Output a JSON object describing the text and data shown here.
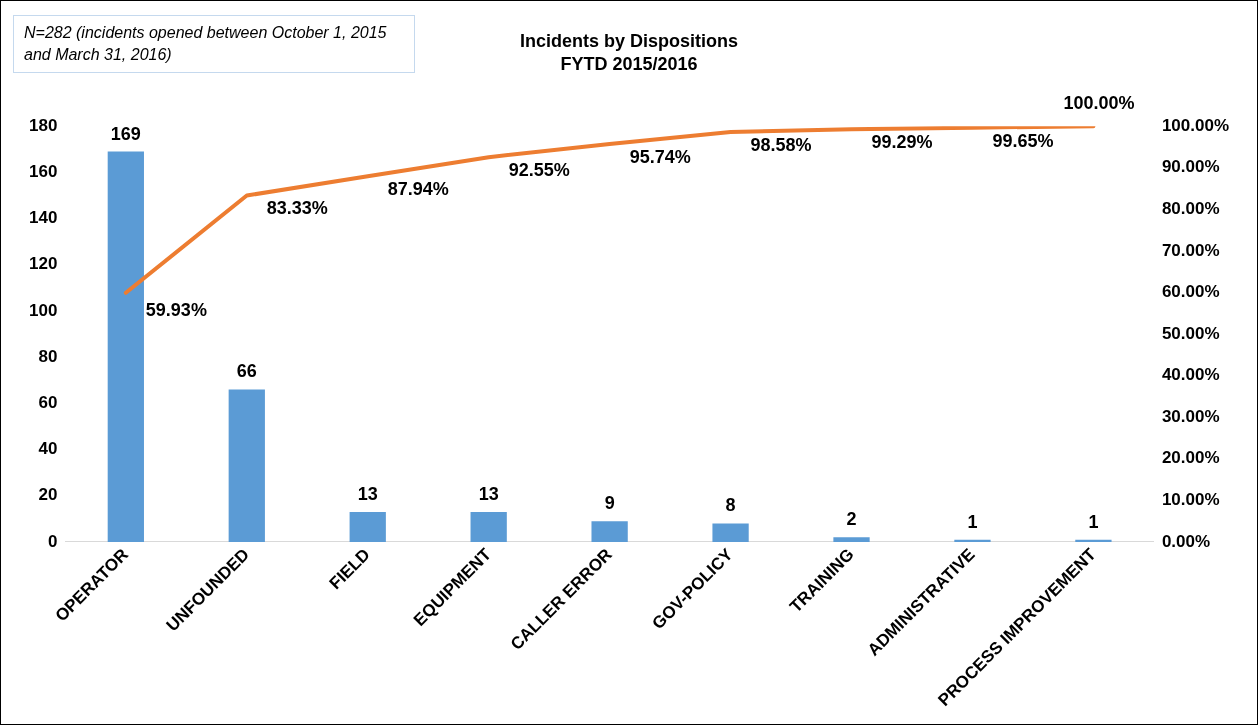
{
  "chart_data": {
    "type": "bar",
    "title": "Incidents by Dispositions",
    "subtitle": "FYTD 2015/2016",
    "annotations": [
      "N=282 (incidents opened between October 1, 2015 and March 31, 2016)"
    ],
    "categories": [
      "OPERATOR",
      "UNFOUNDED",
      "FIELD",
      "EQUIPMENT",
      "CALLER ERROR",
      "GOV-POLICY",
      "TRAINING",
      "ADMINISTRATIVE",
      "PROCESS IMPROVEMENT"
    ],
    "series": [
      {
        "color": "#5b9bd5",
        "values": [
          169,
          66,
          13,
          13,
          9,
          8,
          2,
          1,
          1
        ],
        "value_labels": [
          "169",
          "66",
          "13",
          "13",
          "9",
          "8",
          "2",
          "1",
          "1"
        ]
      },
      {
        "type": "line",
        "axis": "y2",
        "color": "#ed7d31",
        "values": [
          59.93,
          83.33,
          87.94,
          92.55,
          95.74,
          98.58,
          99.29,
          99.65,
          100
        ],
        "value_labels": [
          "59.93%",
          "83.33%",
          "87.94%",
          "92.55%",
          "95.74%",
          "98.58%",
          "99.29%",
          "99.65%",
          "100.00%"
        ]
      }
    ],
    "ylim": [
      0,
      180
    ],
    "yticks": [
      0,
      20,
      40,
      60,
      80,
      100,
      120,
      140,
      160,
      180
    ],
    "y2lim": [
      0,
      100
    ],
    "y2ticks": [
      {
        "value": 0,
        "label": "0.00%"
      },
      {
        "value": 10,
        "label": "10.00%"
      },
      {
        "value": 20,
        "label": "20.00%"
      },
      {
        "value": 30,
        "label": "30.00%"
      },
      {
        "value": 40,
        "label": "40.00%"
      },
      {
        "value": 50,
        "label": "50.00%"
      },
      {
        "value": 60,
        "label": "60.00%"
      },
      {
        "value": 70,
        "label": "70.00%"
      },
      {
        "value": 80,
        "label": "80.00%"
      },
      {
        "value": 90,
        "label": "90.00%"
      },
      {
        "value": 100,
        "label": "100.00%"
      }
    ],
    "grid": false,
    "legend": false,
    "marker": "none",
    "line_style": "solid"
  }
}
